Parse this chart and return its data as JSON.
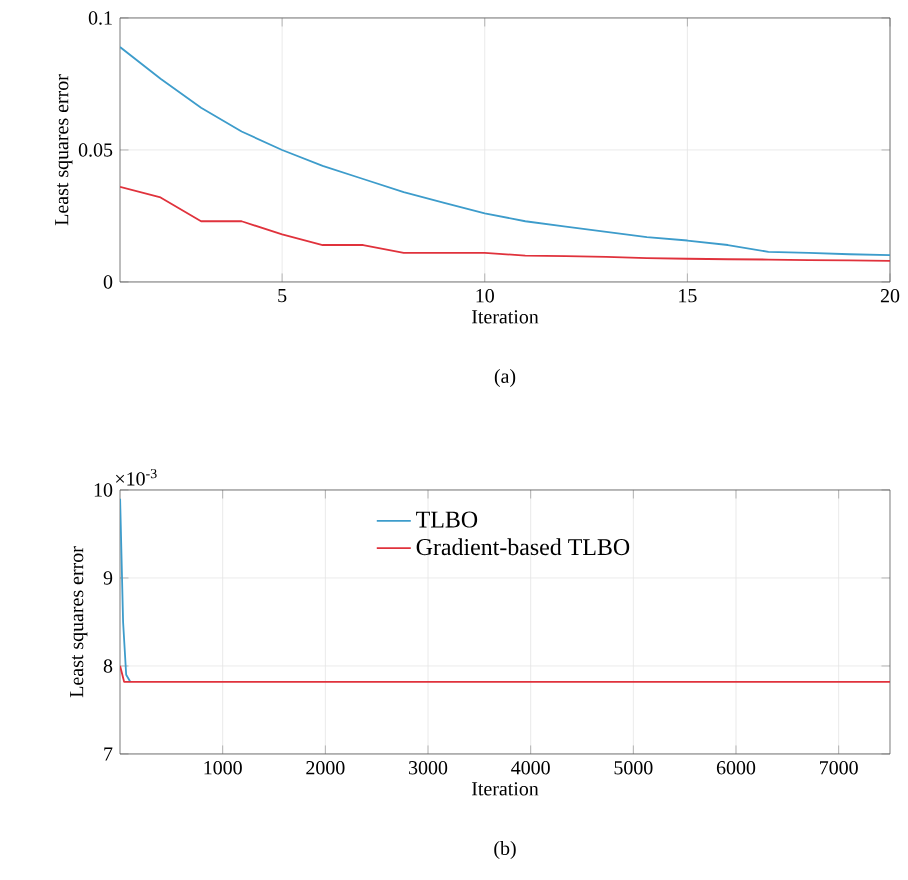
{
  "chart_data": [
    {
      "type": "line",
      "xlabel": "Iteration",
      "ylabel": "Least squares error",
      "x": [
        1,
        2,
        3,
        4,
        5,
        6,
        7,
        8,
        9,
        10,
        11,
        12,
        13,
        14,
        15,
        16,
        17,
        18,
        19,
        20
      ],
      "xlim": [
        1,
        20
      ],
      "ylim": [
        0,
        0.1
      ],
      "xticks": [
        5,
        10,
        15,
        20
      ],
      "yticks": [
        0,
        0.05,
        0.1
      ],
      "grid": true,
      "legend": false,
      "marker": "none",
      "line_style": "solid",
      "series": [
        {
          "color": "#3d9ccb",
          "values": [
            0.089,
            0.077,
            0.066,
            0.057,
            0.05,
            0.044,
            0.039,
            0.034,
            0.03,
            0.026,
            0.023,
            0.021,
            0.019,
            0.017,
            0.0157,
            0.014,
            0.0114,
            0.011,
            0.0105,
            0.0102
          ]
        },
        {
          "color": "#e0323c",
          "values": [
            0.036,
            0.032,
            0.023,
            0.023,
            0.018,
            0.014,
            0.014,
            0.011,
            0.011,
            0.011,
            0.01,
            0.0098,
            0.0095,
            0.009,
            0.0088,
            0.0086,
            0.0085,
            0.0083,
            0.0082,
            0.008
          ]
        }
      ],
      "annotations": [
        "(a)"
      ]
    },
    {
      "type": "line",
      "xlabel": "Iteration",
      "ylabel": "Least squares error",
      "xlim": [
        0,
        7500
      ],
      "ylim": [
        7,
        10
      ],
      "xticks": [
        1000,
        2000,
        3000,
        4000,
        5000,
        6000,
        7000
      ],
      "yticks": [
        7,
        8,
        9,
        10
      ],
      "grid": true,
      "legend": "top",
      "marker": "none",
      "line_style": "solid",
      "series": [
        {
          "name": "TLBO",
          "color": "#3d9ccb",
          "x": [
            1,
            30,
            60,
            100
          ],
          "values": [
            9.9,
            8.5,
            7.9,
            7.82
          ]
        },
        {
          "name": "Gradient-based TLBO",
          "color": "#e0323c",
          "x": [
            1,
            40,
            7500
          ],
          "values": [
            8.0,
            7.82,
            7.82
          ]
        }
      ],
      "annotations": [
        "(b)",
        "×10$^{-3}$"
      ]
    }
  ]
}
